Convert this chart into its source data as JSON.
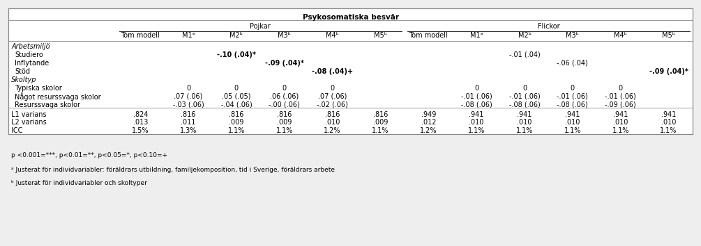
{
  "title": "Psykosomatiska besvär",
  "col_headers": [
    "Tom modell",
    "M1ᵃ",
    "M2ᵇ",
    "M3ᵇ",
    "M4ᵇ",
    "M5ᵇ",
    "Tom modell",
    "M1ᵃ",
    "M2ᵇ",
    "M3ᵇ",
    "M4ᵇ",
    "M5ᵇ"
  ],
  "stat_rows": [
    {
      "label": "L1 varians",
      "values": [
        ".824",
        ".816",
        ".816",
        ".816",
        ".816",
        ".816",
        ".949",
        ".941",
        ".941",
        ".941",
        ".941",
        ".941"
      ]
    },
    {
      "label": "L2 varians",
      "values": [
        ".013",
        ".011",
        ".009",
        ".009",
        ".010",
        ".009",
        ".012",
        ".010",
        ".010",
        ".010",
        ".010",
        ".010"
      ]
    },
    {
      "label": "ICC",
      "values": [
        "1.5%",
        "1.3%",
        "1.1%",
        "1.1%",
        "1.2%",
        "1.1%",
        "1.2%",
        "1.1%",
        "1.1%",
        "1.1%",
        "1.1%",
        "1.1%"
      ]
    }
  ],
  "footnotes": [
    "p <0.001=***, p<0.01=**, p<0.05=*, p<0.10=+",
    "ᵃ Justerat för individvariabler: föräldrars utbildning, familjekomposition, tid i Sverige, föräldrars arbete",
    "ᵇ Justerat för individvariabler och skoltyper"
  ],
  "background_color": "#eeeeee",
  "table_background": "#ffffff"
}
